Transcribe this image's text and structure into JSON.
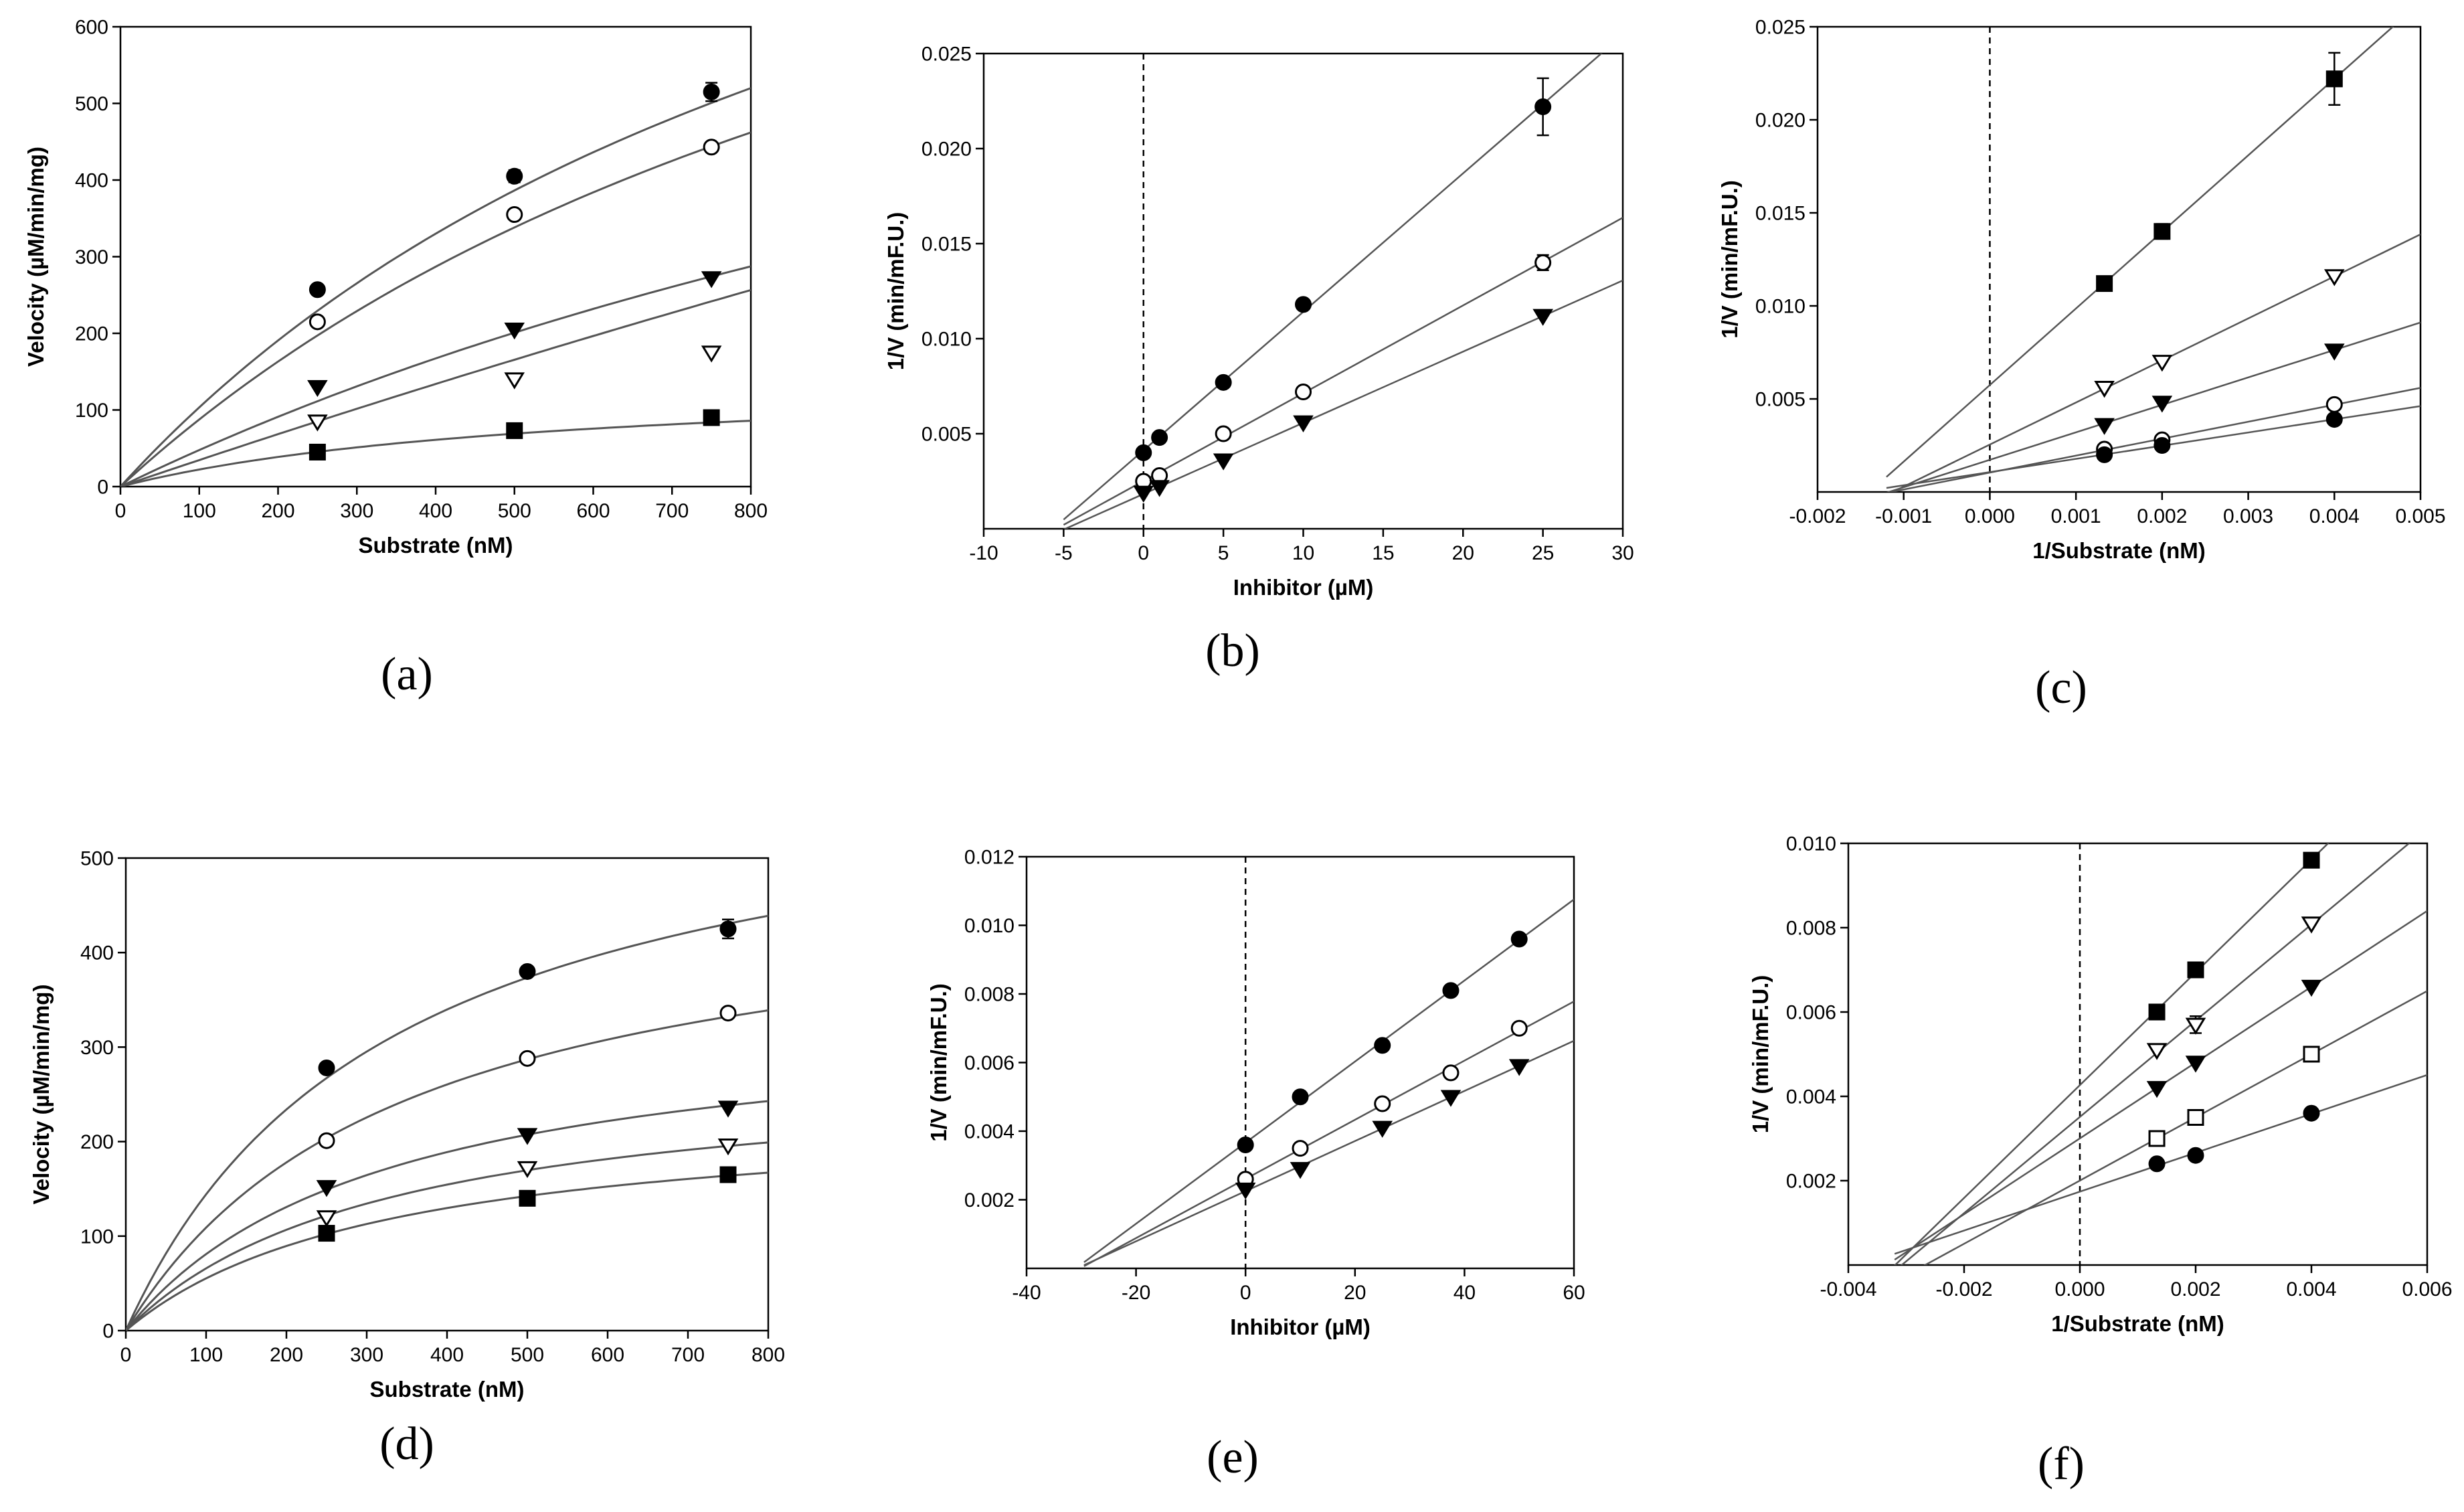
{
  "colors": {
    "ink": "#000000",
    "curve": "#555555",
    "background": "#ffffff"
  },
  "chart_data": [
    {
      "panel": "a",
      "caption": "(a)",
      "type": "scatter",
      "fit": "michaelis-menten",
      "xlabel": "Substrate (nM)",
      "ylabel": "Velocity (µM/min/mg)",
      "xlim": [
        0,
        800
      ],
      "ylim": [
        0,
        600
      ],
      "xticks": [
        0,
        100,
        200,
        300,
        400,
        500,
        600,
        700,
        800
      ],
      "yticks": [
        0,
        100,
        200,
        300,
        400,
        500,
        600
      ],
      "xtick_labels": [
        "0",
        "100",
        "200",
        "300",
        "400",
        "500",
        "600",
        "700",
        "800"
      ],
      "ytick_labels": [
        "0",
        "100",
        "200",
        "300",
        "400",
        "500",
        "600"
      ],
      "series": [
        {
          "marker": "filled-circle",
          "x": [
            250,
            500,
            750
          ],
          "y": [
            257,
            405,
            515
          ],
          "err": [
            0,
            8,
            12
          ],
          "fit_params": [
            1225,
            1085
          ]
        },
        {
          "marker": "open-circle",
          "x": [
            250,
            500,
            750
          ],
          "y": [
            215,
            355,
            443
          ],
          "err": [
            0,
            0,
            0
          ],
          "fit_params": [
            1187,
            1255
          ]
        },
        {
          "marker": "filled-triangle-down",
          "x": [
            250,
            500,
            750
          ],
          "y": [
            130,
            205,
            272
          ],
          "err": [
            0,
            0,
            0
          ],
          "fit_params": [
            1019,
            2037
          ]
        },
        {
          "marker": "open-triangle-down",
          "x": [
            250,
            500,
            750
          ],
          "y": [
            85,
            140,
            175
          ],
          "err": [
            0,
            0,
            0
          ],
          "fit_params": [
            3031,
            8655
          ]
        },
        {
          "marker": "filled-square",
          "x": [
            250,
            500,
            750
          ],
          "y": [
            45,
            73,
            90
          ],
          "err": [
            0,
            0,
            0
          ],
          "fit_params": [
            145,
            550
          ]
        }
      ]
    },
    {
      "panel": "b",
      "caption": "(b)",
      "type": "scatter",
      "fit": "linear",
      "xlabel": "Inhibitor (µM)",
      "ylabel": "1/V (min/mF.U.)",
      "xlim": [
        -10,
        30
      ],
      "ylim": [
        0,
        0.025
      ],
      "xticks": [
        -10,
        -5,
        0,
        5,
        10,
        15,
        20,
        25,
        30
      ],
      "yticks": [
        0.005,
        0.01,
        0.015,
        0.02,
        0.025
      ],
      "xtick_labels": [
        "-10",
        "-5",
        "0",
        "5",
        "10",
        "15",
        "20",
        "25",
        "30"
      ],
      "ytick_labels": [
        "0.005",
        "0.010",
        "0.015",
        "0.020",
        "0.025"
      ],
      "dashed_x": 0,
      "series": [
        {
          "marker": "filled-circle",
          "x": [
            0,
            1,
            5,
            10,
            25
          ],
          "y": [
            0.004,
            0.0048,
            0.0077,
            0.0118,
            0.0222
          ],
          "err": [
            0,
            0,
            0,
            0,
            0.0015
          ],
          "line": [
            -5,
            30
          ]
        },
        {
          "marker": "open-circle",
          "x": [
            0,
            1,
            5,
            10,
            25
          ],
          "y": [
            0.0025,
            0.0028,
            0.005,
            0.0072,
            0.014
          ],
          "err": [
            0,
            0,
            0,
            0,
            0.0004
          ],
          "line": [
            -5,
            30
          ]
        },
        {
          "marker": "filled-triangle-down",
          "x": [
            0,
            1,
            5,
            10,
            25
          ],
          "y": [
            0.0019,
            0.0022,
            0.0036,
            0.0056,
            0.0112
          ],
          "err": [
            0,
            0,
            0,
            0,
            0
          ],
          "line": [
            -5,
            30
          ]
        }
      ]
    },
    {
      "panel": "c",
      "caption": "(c)",
      "type": "scatter",
      "fit": "linear",
      "xlabel": "1/Substrate (nM)",
      "ylabel": "1/V (min/mF.U.)",
      "xlim": [
        -0.002,
        0.005
      ],
      "ylim": [
        0,
        0.025
      ],
      "xticks": [
        -0.002,
        -0.001,
        0,
        0.001,
        0.002,
        0.003,
        0.004,
        0.005
      ],
      "yticks": [
        0.005,
        0.01,
        0.015,
        0.02,
        0.025
      ],
      "xtick_labels": [
        "-0.002",
        "-0.001",
        "0.000",
        "0.001",
        "0.002",
        "0.003",
        "0.004",
        "0.005"
      ],
      "ytick_labels": [
        "0.005",
        "0.010",
        "0.015",
        "0.020",
        "0.025"
      ],
      "dashed_x": 0,
      "series": [
        {
          "marker": "filled-square",
          "x": [
            0.00133,
            0.002,
            0.004
          ],
          "y": [
            0.0112,
            0.014,
            0.0222
          ],
          "err": [
            0,
            0.0004,
            0.0014
          ],
          "line": [
            -0.0012,
            0.005
          ]
        },
        {
          "marker": "open-triangle-down",
          "x": [
            0.00133,
            0.002,
            0.004
          ],
          "y": [
            0.0056,
            0.007,
            0.0116
          ],
          "err": [
            0,
            0,
            0
          ],
          "line": [
            -0.0012,
            0.005
          ]
        },
        {
          "marker": "filled-triangle-down",
          "x": [
            0.00133,
            0.002,
            0.004
          ],
          "y": [
            0.0036,
            0.0048,
            0.0076
          ],
          "err": [
            0,
            0,
            0
          ],
          "line": [
            -0.0012,
            0.005
          ]
        },
        {
          "marker": "open-circle",
          "x": [
            0.00133,
            0.002,
            0.004
          ],
          "y": [
            0.0023,
            0.0028,
            0.0047
          ],
          "err": [
            0,
            0,
            0
          ],
          "line": [
            -0.0012,
            0.005
          ]
        },
        {
          "marker": "filled-circle",
          "x": [
            0.00133,
            0.002,
            0.004
          ],
          "y": [
            0.002,
            0.0025,
            0.0039
          ],
          "err": [
            0,
            0,
            0
          ],
          "line": [
            -0.0012,
            0.005
          ]
        }
      ]
    },
    {
      "panel": "d",
      "caption": "(d)",
      "type": "scatter",
      "fit": "michaelis-menten",
      "xlabel": "Substrate (nM)",
      "ylabel": "Velocity (µM/min/mg)",
      "xlim": [
        0,
        800
      ],
      "ylim": [
        0,
        500
      ],
      "xticks": [
        0,
        100,
        200,
        300,
        400,
        500,
        600,
        700,
        800
      ],
      "yticks": [
        0,
        100,
        200,
        300,
        400,
        500
      ],
      "xtick_labels": [
        "0",
        "100",
        "200",
        "300",
        "400",
        "500",
        "600",
        "700",
        "800"
      ],
      "ytick_labels": [
        "0",
        "100",
        "200",
        "300",
        "400",
        "500"
      ],
      "series": [
        {
          "marker": "filled-circle",
          "x": [
            250,
            500,
            750
          ],
          "y": [
            278,
            380,
            425
          ],
          "err": [
            5,
            0,
            10
          ],
          "fit_params": [
            620,
            330
          ]
        },
        {
          "marker": "open-circle",
          "x": [
            250,
            500,
            750
          ],
          "y": [
            201,
            288,
            336
          ],
          "err": [
            4,
            0,
            0
          ],
          "fit_params": [
            485,
            345
          ]
        },
        {
          "marker": "filled-triangle-down",
          "x": [
            250,
            500,
            750
          ],
          "y": [
            152,
            207,
            236
          ],
          "err": [
            0,
            0,
            0
          ],
          "fit_params": [
            340,
            320
          ]
        },
        {
          "marker": "open-triangle-down",
          "x": [
            250,
            500,
            750
          ],
          "y": [
            120,
            172,
            196
          ],
          "err": [
            0,
            0,
            0
          ],
          "fit_params": [
            280,
            325
          ]
        },
        {
          "marker": "filled-square",
          "x": [
            250,
            500,
            750
          ],
          "y": [
            103,
            140,
            165
          ],
          "err": [
            0,
            0,
            0
          ],
          "fit_params": [
            235,
            325
          ]
        }
      ]
    },
    {
      "panel": "e",
      "caption": "(e)",
      "type": "scatter",
      "fit": "linear",
      "xlabel": "Inhibitor (µM)",
      "ylabel": "1/V (min/mF.U.)",
      "xlim": [
        -40,
        60
      ],
      "ylim": [
        0,
        0.012
      ],
      "xticks": [
        -40,
        -20,
        0,
        20,
        40,
        60
      ],
      "yticks": [
        0.002,
        0.004,
        0.006,
        0.008,
        0.01,
        0.012
      ],
      "xtick_labels": [
        "-40",
        "-20",
        "0",
        "20",
        "40",
        "60"
      ],
      "ytick_labels": [
        "0.002",
        "0.004",
        "0.006",
        "0.008",
        "0.010",
        "0.012"
      ],
      "dashed_x": 0,
      "series": [
        {
          "marker": "filled-circle",
          "x": [
            0,
            10,
            25,
            37.5,
            50
          ],
          "y": [
            0.0036,
            0.005,
            0.0065,
            0.0081,
            0.0096
          ],
          "err": [
            0,
            0,
            0,
            0,
            0
          ],
          "line": [
            -29.5,
            60
          ]
        },
        {
          "marker": "open-circle",
          "x": [
            0,
            10,
            25,
            37.5,
            50
          ],
          "y": [
            0.0026,
            0.0035,
            0.0048,
            0.0057,
            0.007
          ],
          "err": [
            0,
            0,
            0,
            0,
            0
          ],
          "line": [
            -29.5,
            60
          ]
        },
        {
          "marker": "filled-triangle-down",
          "x": [
            0,
            10,
            25,
            37.5,
            50
          ],
          "y": [
            0.0023,
            0.0029,
            0.0041,
            0.005,
            0.0059
          ],
          "err": [
            0,
            0,
            0,
            0,
            0
          ],
          "line": [
            -29.5,
            60
          ]
        }
      ]
    },
    {
      "panel": "f",
      "caption": "(f)",
      "type": "scatter",
      "fit": "linear",
      "xlabel": "1/Substrate (nM)",
      "ylabel": "1/V (min/mF.U.)",
      "xlim": [
        -0.004,
        0.006
      ],
      "ylim": [
        0,
        0.01
      ],
      "xticks": [
        -0.004,
        -0.002,
        0,
        0.002,
        0.004,
        0.006
      ],
      "yticks": [
        0.002,
        0.004,
        0.006,
        0.008,
        0.01
      ],
      "xtick_labels": [
        "-0.004",
        "-0.002",
        "0.000",
        "0.002",
        "0.004",
        "0.006"
      ],
      "ytick_labels": [
        "0.002",
        "0.004",
        "0.006",
        "0.008",
        "0.010"
      ],
      "dashed_x": 0,
      "series": [
        {
          "marker": "filled-square",
          "x": [
            0.00133,
            0.002,
            0.004
          ],
          "y": [
            0.006,
            0.007,
            0.0096
          ],
          "err": [
            0,
            0,
            0
          ],
          "line": [
            -0.0032,
            0.006
          ]
        },
        {
          "marker": "open-triangle-down",
          "x": [
            0.00133,
            0.002,
            0.004
          ],
          "y": [
            0.0051,
            0.0057,
            0.0081
          ],
          "err": [
            0,
            0.0002,
            0
          ],
          "line": [
            -0.0032,
            0.006
          ]
        },
        {
          "marker": "filled-triangle-down",
          "x": [
            0.00133,
            0.002,
            0.004
          ],
          "y": [
            0.0042,
            0.0048,
            0.0066
          ],
          "err": [
            0,
            0,
            0
          ],
          "line": [
            -0.0032,
            0.006
          ]
        },
        {
          "marker": "open-square",
          "x": [
            0.00133,
            0.002,
            0.004
          ],
          "y": [
            0.003,
            0.0035,
            0.005
          ],
          "err": [
            0,
            0,
            0
          ],
          "line": [
            -0.0032,
            0.006
          ]
        },
        {
          "marker": "filled-circle",
          "x": [
            0.00133,
            0.002,
            0.004
          ],
          "y": [
            0.0024,
            0.0026,
            0.0036
          ],
          "err": [
            0,
            0,
            0
          ],
          "line": [
            -0.0032,
            0.006
          ]
        }
      ]
    }
  ]
}
